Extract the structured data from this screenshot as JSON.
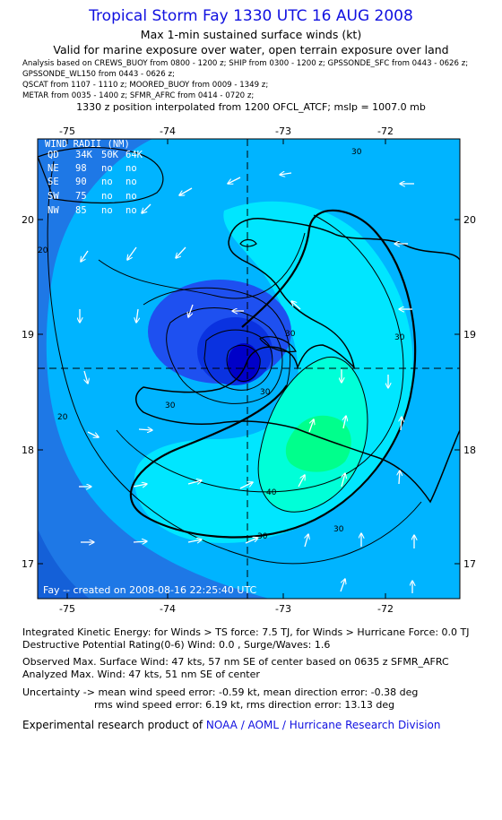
{
  "header": {
    "title": "Tropical Storm Fay 1330 UTC 16 AUG 2008",
    "subtitle1": "Max 1-min sustained surface winds (kt)",
    "subtitle2": "Valid for marine exposure over water, open terrain exposure over land",
    "sources": [
      "Analysis based on  CREWS_BUOY from 0800 - 1200 z;  SHIP from 0300 - 1200 z;  GPSSONDE_SFC from 0443 - 0626 z;",
      "GPSSONDE_WL150 from 0443 - 0626 z;",
      "QSCAT from 1107 - 1110 z;   MOORED_BUOY from 0009 - 1349 z;",
      "METAR from 0035 - 1400 z;   SFMR_AFRC from 0414 - 0720 z;"
    ],
    "position_note": "1330 z position interpolated from 1200 OFCL_ATCF; mslp = 1007.0 mb"
  },
  "map": {
    "lon_ticks": [
      "-75",
      "-74",
      "-73",
      "-72"
    ],
    "lat_ticks": [
      "20",
      "19",
      "18",
      "17"
    ],
    "contour_labels": [
      "30",
      "30",
      "30",
      "30",
      "30",
      "30",
      "30",
      "40",
      "20",
      "20"
    ],
    "center_lon": -73.25,
    "center_lat": 18.7,
    "colors": {
      "ocean_low": "#1e78e6",
      "ocean_mid": "#00b4ff",
      "band_30": "#00e6ff",
      "band_40": "#00ffd8",
      "max_wind": "#00ff8c",
      "core_dark": "#0000c8",
      "core_mid": "#1e50f0"
    },
    "wind_radii": {
      "header": "WIND RADII (NM)",
      "columns": [
        "QD",
        "34K",
        "50K",
        "64K"
      ],
      "rows": [
        {
          "quadrant": "NE",
          "r34": "98",
          "r50": "no",
          "r64": "no"
        },
        {
          "quadrant": "SE",
          "r34": "90",
          "r50": "no",
          "r64": "no"
        },
        {
          "quadrant": "SW",
          "r34": "75",
          "r50": "no",
          "r64": "no"
        },
        {
          "quadrant": "NW",
          "r34": "85",
          "r50": "no",
          "r64": "no"
        }
      ]
    },
    "footer_text": "Fay -- created on 2008-08-16 22:25:40 UTC"
  },
  "stats": {
    "ike": "Integrated Kinetic Energy:  for Winds > TS force: 7.5 TJ,  for Winds > Hurricane Force: 0.0 TJ",
    "dpr": "Destructive Potential Rating(0-6)   Wind: 0.0 , Surge/Waves: 1.6",
    "observed": "Observed Max. Surface Wind: 47 kts, 57 nm SE of center based on 0635 z SFMR_AFRC",
    "analyzed": "Analyzed Max. Wind: 47 kts, 51 nm SE of center",
    "uncertainty1": "Uncertainty -> mean wind speed error:  -0.59 kt,   mean direction error:  -0.38 deg",
    "uncertainty2": "rms wind speed error: 6.19 kt,   rms direction error: 13.13 deg",
    "product_prefix": "Experimental research product of ",
    "product_org": "NOAA / AOML / Hurricane Research Division"
  }
}
